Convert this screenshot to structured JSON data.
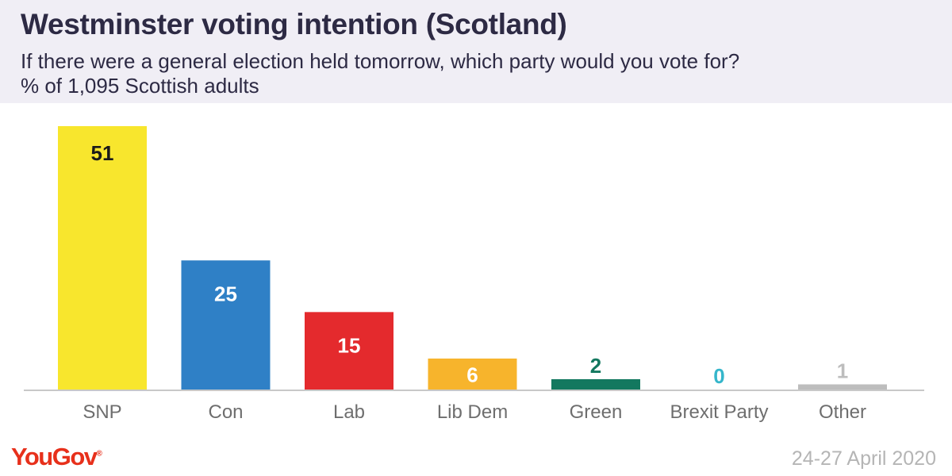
{
  "header": {
    "title": "Westminster voting intention (Scotland)",
    "subtitle": "If there were a general election held tomorrow, which party would you vote for?",
    "note": "% of 1,095 Scottish adults"
  },
  "footer": {
    "logo": "YouGov",
    "date": "24-27 April 2020"
  },
  "chart_data": {
    "type": "bar",
    "title": "Westminster voting intention (Scotland)",
    "xlabel": "",
    "ylabel": "",
    "ylim": [
      0,
      55
    ],
    "grid": false,
    "categories": [
      "SNP",
      "Con",
      "Lab",
      "Lib Dem",
      "Green",
      "Brexit Party",
      "Other"
    ],
    "values": [
      51,
      25,
      15,
      6,
      2,
      0,
      1
    ],
    "colors": [
      "#f8e62d",
      "#2f80c6",
      "#e42a2d",
      "#f7b42c",
      "#13785f",
      "#35b6cb",
      "#bdbdbd"
    ],
    "label_colors": [
      "#1a1a1a",
      "#ffffff",
      "#ffffff",
      "#ffffff",
      "#13785f",
      "#35b6cb",
      "#bdbdbd"
    ]
  }
}
